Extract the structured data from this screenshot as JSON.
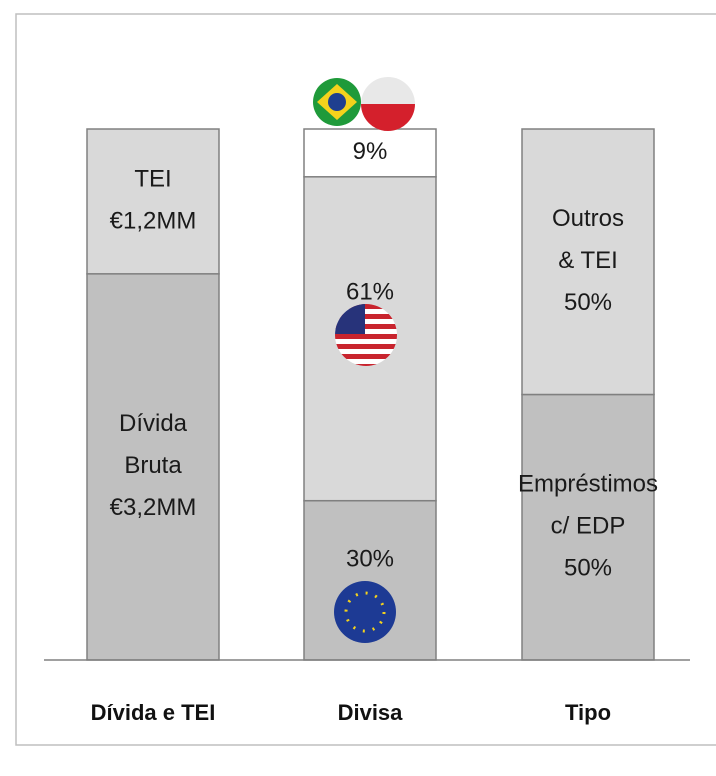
{
  "chart_data": {
    "type": "stacked-bar-100",
    "bars": [
      {
        "category": "Dívida e TEI",
        "segments": [
          {
            "name_lines": [
              "Dívida",
              "Bruta"
            ],
            "value": 3.2,
            "value_label": "€3,2MM",
            "color": "#c0c0c0"
          },
          {
            "name_lines": [
              "TEI"
            ],
            "value": 1.2,
            "value_label": "€1,2MM",
            "color": "#d9d9d9"
          }
        ]
      },
      {
        "category": "Divisa",
        "segments": [
          {
            "name_lines": [],
            "value": 30,
            "value_label": "30%",
            "color": "#c0c0c0"
          },
          {
            "name_lines": [],
            "value": 61,
            "value_label": "61%",
            "color": "#d9d9d9"
          },
          {
            "name_lines": [],
            "value": 9,
            "value_label": "9%",
            "color": "#ffffff"
          }
        ]
      },
      {
        "category": "Tipo",
        "segments": [
          {
            "name_lines": [
              "Empréstimos",
              "c/ EDP"
            ],
            "value": 50,
            "value_label": "50%",
            "color": "#c0c0c0"
          },
          {
            "name_lines": [
              "Outros",
              "& TEI"
            ],
            "value": 50,
            "value_label": "50%",
            "color": "#d9d9d9"
          }
        ]
      }
    ]
  }
}
